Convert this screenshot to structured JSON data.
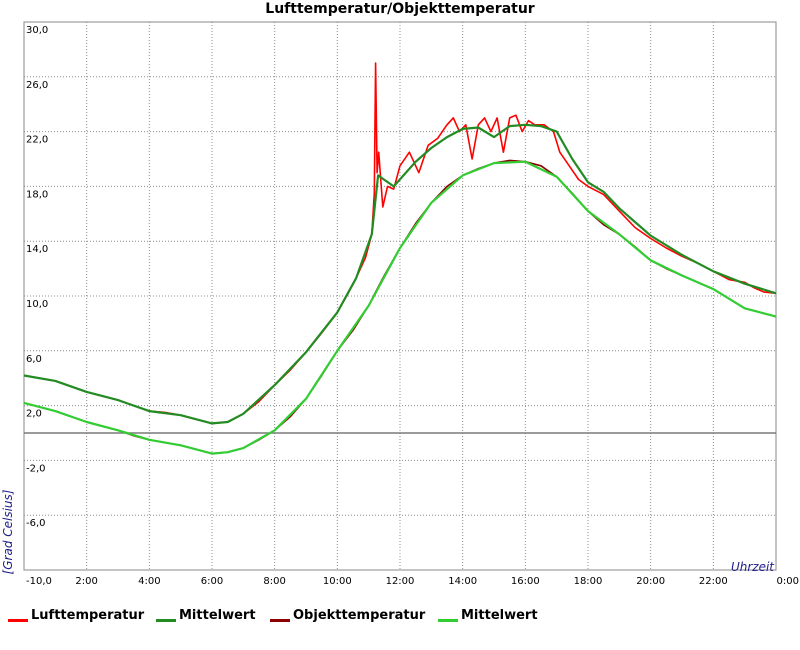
{
  "chart_data": {
    "type": "line",
    "title": "Lufttemperatur/Objekttemperatur",
    "xlabel": "Uhrzeit",
    "ylabel": "[Grad Celsius]",
    "x_range": [
      0,
      24
    ],
    "ylim": [
      -10,
      30
    ],
    "x_ticks": [
      {
        "value": 2,
        "label": "2:00"
      },
      {
        "value": 4,
        "label": "4:00"
      },
      {
        "value": 6,
        "label": "6:00"
      },
      {
        "value": 8,
        "label": "8:00"
      },
      {
        "value": 10,
        "label": "10:00"
      },
      {
        "value": 12,
        "label": "12:00"
      },
      {
        "value": 14,
        "label": "14:00"
      },
      {
        "value": 16,
        "label": "16:00"
      },
      {
        "value": 18,
        "label": "18:00"
      },
      {
        "value": 20,
        "label": "20:00"
      },
      {
        "value": 22,
        "label": "22:00"
      },
      {
        "value": 24,
        "label": "0:00"
      }
    ],
    "y_ticks": [
      {
        "value": 30,
        "label": "30,0"
      },
      {
        "value": 26,
        "label": "26,0"
      },
      {
        "value": 22,
        "label": "22,0"
      },
      {
        "value": 18,
        "label": "18,0"
      },
      {
        "value": 14,
        "label": "14,0"
      },
      {
        "value": 10,
        "label": "10,0"
      },
      {
        "value": 6,
        "label": "6,0"
      },
      {
        "value": 2,
        "label": "2,0"
      },
      {
        "value": -2,
        "label": "-2,0"
      },
      {
        "value": -6,
        "label": "-6,0"
      },
      {
        "value": -10,
        "label": "-10,0"
      }
    ],
    "grid": true,
    "zero_line": true,
    "legend_position": "bottom",
    "series": [
      {
        "name": "Lufttemperatur",
        "color": "#ff0000",
        "x": [
          0,
          0.5,
          1,
          1.5,
          2,
          2.5,
          3,
          3.5,
          4,
          4.5,
          5,
          5.5,
          6,
          6.5,
          7,
          7.5,
          8,
          8.5,
          9,
          9.5,
          10,
          10.3,
          10.6,
          10.9,
          11.1,
          11.18,
          11.22,
          11.27,
          11.32,
          11.45,
          11.6,
          11.8,
          12,
          12.3,
          12.6,
          12.9,
          13.2,
          13.5,
          13.7,
          13.9,
          14.1,
          14.3,
          14.5,
          14.7,
          14.9,
          15.1,
          15.3,
          15.5,
          15.7,
          15.9,
          16.1,
          16.3,
          16.6,
          16.9,
          17.1,
          17.4,
          17.7,
          18,
          18.5,
          19,
          19.5,
          20,
          20.5,
          21,
          21.5,
          22,
          22.5,
          23,
          23.3,
          23.6,
          24
        ],
        "values": [
          4.2,
          4.0,
          3.8,
          3.4,
          3.0,
          2.7,
          2.4,
          2.0,
          1.6,
          1.5,
          1.3,
          1.0,
          0.7,
          0.8,
          1.4,
          2.3,
          3.5,
          4.6,
          5.9,
          7.3,
          8.8,
          10.0,
          11.3,
          12.8,
          14.5,
          17.5,
          27.0,
          19.0,
          20.5,
          16.5,
          18.0,
          17.8,
          19.5,
          20.5,
          19.0,
          21.0,
          21.5,
          22.5,
          23.0,
          22.0,
          22.5,
          20.0,
          22.5,
          23.0,
          22.0,
          23.0,
          20.5,
          23.0,
          23.2,
          22.0,
          22.8,
          22.5,
          22.5,
          22.0,
          20.5,
          19.5,
          18.5,
          18.0,
          17.4,
          16.2,
          15.0,
          14.2,
          13.5,
          12.9,
          12.4,
          11.8,
          11.2,
          11.0,
          10.6,
          10.3,
          10.2
        ]
      },
      {
        "name": "Mittelwert",
        "color": "#228b22",
        "x": [
          0,
          1,
          2,
          3,
          4,
          5,
          6,
          6.5,
          7,
          8,
          9,
          10,
          10.6,
          11.1,
          11.3,
          11.8,
          12.5,
          13,
          13.5,
          14,
          14.5,
          15,
          15.5,
          16,
          16.5,
          17,
          17.5,
          18,
          18.5,
          19,
          20,
          21,
          22,
          23,
          24
        ],
        "values": [
          4.2,
          3.8,
          3.0,
          2.4,
          1.6,
          1.3,
          0.7,
          0.8,
          1.4,
          3.5,
          5.9,
          8.8,
          11.3,
          14.5,
          18.8,
          18.0,
          19.8,
          20.8,
          21.6,
          22.2,
          22.3,
          21.6,
          22.4,
          22.5,
          22.4,
          22.0,
          20.0,
          18.3,
          17.6,
          16.4,
          14.4,
          13.0,
          11.8,
          10.9,
          10.2
        ]
      },
      {
        "name": "Objekttemperatur",
        "color": "#8b0000",
        "x": [
          0,
          0.5,
          1,
          1.5,
          2,
          2.5,
          3,
          3.5,
          4,
          4.5,
          5,
          5.5,
          6,
          6.5,
          7,
          7.5,
          8,
          8.5,
          9,
          9.5,
          10,
          10.5,
          11,
          11.2,
          11.5,
          12,
          12.5,
          13,
          13.5,
          14,
          14.5,
          15,
          15.5,
          16,
          16.5,
          17,
          17.5,
          18,
          18.5,
          19,
          19.5,
          20,
          20.5,
          21,
          21.5,
          22,
          22.5,
          23,
          23.5,
          24
        ],
        "values": [
          2.2,
          1.9,
          1.6,
          1.2,
          0.8,
          0.5,
          0.2,
          -0.2,
          -0.5,
          -0.7,
          -0.9,
          -1.2,
          -1.5,
          -1.4,
          -1.1,
          -0.5,
          0.2,
          1.2,
          2.5,
          4.2,
          6.0,
          7.5,
          9.3,
          10.2,
          11.5,
          13.5,
          15.3,
          16.8,
          18.0,
          18.8,
          19.3,
          19.7,
          19.9,
          19.8,
          19.5,
          18.7,
          17.5,
          16.2,
          15.2,
          14.5,
          13.6,
          12.6,
          12.0,
          11.5,
          11.0,
          10.5,
          9.8,
          9.1,
          8.8,
          8.5
        ]
      },
      {
        "name": "Mittelwert",
        "color": "#32cd32",
        "x": [
          0,
          1,
          2,
          3,
          4,
          5,
          6,
          6.5,
          7,
          8,
          9,
          10,
          11,
          12,
          13,
          14,
          15,
          16,
          17,
          18,
          19,
          20,
          21,
          22,
          23,
          24
        ],
        "values": [
          2.2,
          1.6,
          0.8,
          0.2,
          -0.5,
          -0.9,
          -1.5,
          -1.4,
          -1.1,
          0.2,
          2.5,
          6.0,
          9.3,
          13.5,
          16.8,
          18.8,
          19.7,
          19.8,
          18.7,
          16.2,
          14.5,
          12.6,
          11.5,
          10.5,
          9.1,
          8.5
        ]
      }
    ]
  }
}
